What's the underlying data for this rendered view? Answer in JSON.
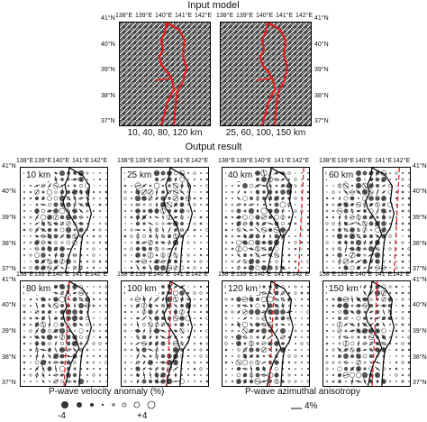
{
  "top_title": "Input model",
  "bottom_title": "Output result",
  "lon_ticks": [
    "138°E",
    "139°E",
    "140°E",
    "141°E",
    "142°E"
  ],
  "lat_ticks": [
    "41°N",
    "40°N",
    "39°N",
    "38°N",
    "37°N"
  ],
  "input_panels": [
    {
      "caption": "10, 40, 80, 120 km"
    },
    {
      "caption": "25, 60, 100, 150 km"
    }
  ],
  "output_panels": [
    {
      "depth": "10 km"
    },
    {
      "depth": "25 km"
    },
    {
      "depth": "40 km"
    },
    {
      "depth": "60 km"
    },
    {
      "depth": "80 km"
    },
    {
      "depth": "100 km"
    },
    {
      "depth": "120 km"
    },
    {
      "depth": "150 km"
    }
  ],
  "legend": {
    "velocity_title": "P-wave velocity anomaly (%)",
    "neg_label": "-4",
    "pos_label": "+4",
    "aniso_title": "P-wave azimuthal anisotropy",
    "aniso_label": "4%"
  },
  "colors": {
    "trench_line": "#e02020",
    "fill": "#888888",
    "coast": "#000000"
  }
}
